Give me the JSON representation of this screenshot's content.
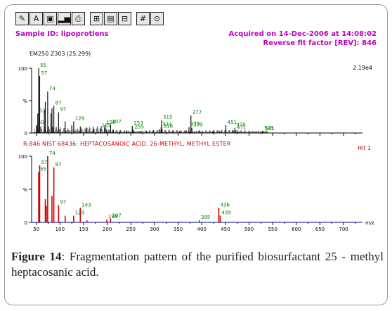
{
  "toolbar": {
    "buttons": [
      {
        "name": "edit-icon",
        "glyph": "✎"
      },
      {
        "name": "font-icon",
        "glyph": "A"
      },
      {
        "name": "camera-icon",
        "glyph": "▣"
      },
      {
        "name": "bar-chart-icon",
        "glyph": "▂▅"
      },
      {
        "name": "print-icon",
        "glyph": "⎙"
      },
      {
        "name": "grid-icon",
        "glyph": "⊞"
      },
      {
        "name": "stack-icon",
        "glyph": "▤"
      },
      {
        "name": "split-icon",
        "glyph": "⊟"
      },
      {
        "name": "hash-icon",
        "glyph": "#"
      },
      {
        "name": "target-icon",
        "glyph": "⊙"
      }
    ]
  },
  "header": {
    "sample_id": "Sample ID: lipoprotiens",
    "acquired": "Acquired on 14-Dec-2006 at 14:08:02",
    "reverse_fit": "Reverse fit factor [REV]: 846"
  },
  "colors": {
    "header": "#c000c0",
    "sample_bars": "#111111",
    "sample_labels": "#008000",
    "library_bars": "#d00000",
    "library_axis": "#000080",
    "library_labels": "#008000"
  },
  "chart_data": [
    {
      "type": "bar",
      "panel": "sample",
      "scan_label": "EM250 Z303 (25.299)",
      "max_intensity_label": "2.19e4",
      "y_ticks": [
        "100",
        "%",
        "0"
      ],
      "xlim": [
        40,
        740
      ],
      "ylim": [
        0,
        100
      ],
      "peaks": [
        {
          "mz": 50,
          "intensity": 12,
          "label": "50"
        },
        {
          "mz": 53,
          "intensity": 30,
          "label": "53"
        },
        {
          "mz": 55,
          "intensity": 100,
          "label": "55"
        },
        {
          "mz": 57,
          "intensity": 88,
          "label": "57"
        },
        {
          "mz": 67,
          "intensity": 35,
          "label": ""
        },
        {
          "mz": 69,
          "intensity": 48,
          "label": ""
        },
        {
          "mz": 74,
          "intensity": 64,
          "label": "74"
        },
        {
          "mz": 81,
          "intensity": 30,
          "label": ""
        },
        {
          "mz": 83,
          "intensity": 38,
          "label": ""
        },
        {
          "mz": 87,
          "intensity": 42,
          "label": "87"
        },
        {
          "mz": 97,
          "intensity": 32,
          "label": "97"
        },
        {
          "mz": 111,
          "intensity": 18,
          "label": ""
        },
        {
          "mz": 125,
          "intensity": 12,
          "label": ""
        },
        {
          "mz": 129,
          "intensity": 18,
          "label": "129"
        },
        {
          "mz": 143,
          "intensity": 10,
          "label": ""
        },
        {
          "mz": 157,
          "intensity": 8,
          "label": ""
        },
        {
          "mz": 171,
          "intensity": 6,
          "label": ""
        },
        {
          "mz": 185,
          "intensity": 7,
          "label": "185"
        },
        {
          "mz": 195,
          "intensity": 12,
          "label": "195"
        },
        {
          "mz": 199,
          "intensity": 6,
          "label": ""
        },
        {
          "mz": 207,
          "intensity": 13,
          "label": "207"
        },
        {
          "mz": 213,
          "intensity": 5,
          "label": ""
        },
        {
          "mz": 227,
          "intensity": 4,
          "label": ""
        },
        {
          "mz": 241,
          "intensity": 4,
          "label": ""
        },
        {
          "mz": 253,
          "intensity": 11,
          "label": "253"
        },
        {
          "mz": 255,
          "intensity": 5,
          "label": "255"
        },
        {
          "mz": 269,
          "intensity": 3,
          "label": ""
        },
        {
          "mz": 283,
          "intensity": 3,
          "label": ""
        },
        {
          "mz": 297,
          "intensity": 4,
          "label": ""
        },
        {
          "mz": 311,
          "intensity": 6,
          "label": ""
        },
        {
          "mz": 314,
          "intensity": 9,
          "label": "314"
        },
        {
          "mz": 315,
          "intensity": 20,
          "label": "315"
        },
        {
          "mz": 316,
          "intensity": 6,
          "label": "316"
        },
        {
          "mz": 339,
          "intensity": 3,
          "label": ""
        },
        {
          "mz": 353,
          "intensity": 3,
          "label": ""
        },
        {
          "mz": 367,
          "intensity": 4,
          "label": ""
        },
        {
          "mz": 373,
          "intensity": 9,
          "label": "373"
        },
        {
          "mz": 377,
          "intensity": 27,
          "label": "377"
        },
        {
          "mz": 379,
          "intensity": 8,
          "label": "379"
        },
        {
          "mz": 395,
          "intensity": 4,
          "label": ""
        },
        {
          "mz": 423,
          "intensity": 3,
          "label": ""
        },
        {
          "mz": 437,
          "intensity": 3,
          "label": ""
        },
        {
          "mz": 451,
          "intensity": 12,
          "label": "451"
        },
        {
          "mz": 465,
          "intensity": 4,
          "label": ""
        },
        {
          "mz": 470,
          "intensity": 8,
          "label": "470"
        },
        {
          "mz": 471,
          "intensity": 4,
          "label": "471"
        },
        {
          "mz": 479,
          "intensity": 2,
          "label": ""
        },
        {
          "mz": 529,
          "intensity": 3,
          "label": "529"
        },
        {
          "mz": 531,
          "intensity": 2,
          "label": "531"
        }
      ]
    },
    {
      "type": "bar",
      "panel": "library",
      "library_match": "R:846   NIST 68436: HEPTACOSANOIC ACID, 26-METHYL, METHYL ESTER",
      "hit_label": "Hit 1",
      "y_ticks": [
        "100",
        "%",
        "0"
      ],
      "x_ticks": [
        50,
        100,
        150,
        200,
        250,
        300,
        350,
        400,
        450,
        500,
        550,
        600,
        650,
        700
      ],
      "xlabel": "m/z",
      "xlim": [
        40,
        740
      ],
      "ylim": [
        0,
        100
      ],
      "peaks": [
        {
          "mz": 55,
          "intensity": 76,
          "label": "55"
        },
        {
          "mz": 57,
          "intensity": 86,
          "label": "57"
        },
        {
          "mz": 69,
          "intensity": 35,
          "label": ""
        },
        {
          "mz": 71,
          "intensity": 25,
          "label": ""
        },
        {
          "mz": 74,
          "intensity": 100,
          "label": "74"
        },
        {
          "mz": 83,
          "intensity": 40,
          "label": ""
        },
        {
          "mz": 87,
          "intensity": 83,
          "label": "87"
        },
        {
          "mz": 97,
          "intensity": 26,
          "label": "97"
        },
        {
          "mz": 111,
          "intensity": 10,
          "label": ""
        },
        {
          "mz": 129,
          "intensity": 10,
          "label": "129"
        },
        {
          "mz": 143,
          "intensity": 22,
          "label": "143"
        },
        {
          "mz": 157,
          "intensity": 3,
          "label": ""
        },
        {
          "mz": 199,
          "intensity": 4,
          "label": "199"
        },
        {
          "mz": 207,
          "intensity": 6,
          "label": "207"
        },
        {
          "mz": 395,
          "intensity": 3,
          "label": "395"
        },
        {
          "mz": 436,
          "intensity": 22,
          "label": "436"
        },
        {
          "mz": 439,
          "intensity": 10,
          "label": "439"
        }
      ]
    }
  ],
  "caption": {
    "label": "Figure 14",
    "text": ": Fragmentation pattern of the purified biosurfactant 25 - methyl heptacosanic acid."
  }
}
